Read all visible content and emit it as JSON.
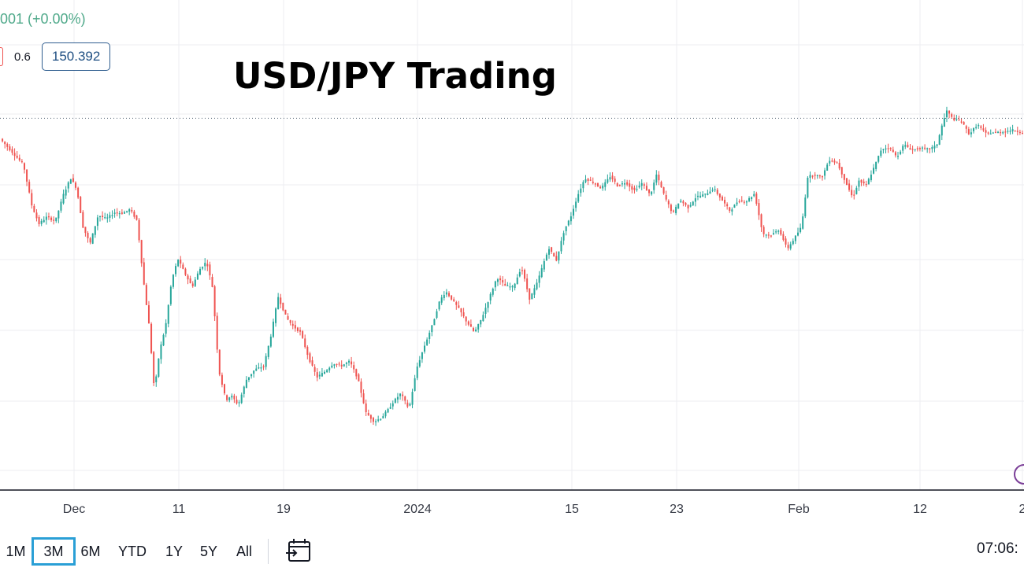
{
  "title": "USD/JPY Trading",
  "legend": {
    "change_text": "001 (+0.00%)",
    "indicator_value": "0.6",
    "price_label": "150.392"
  },
  "colors": {
    "up": "#26a69a",
    "down": "#ef5350",
    "grid": "#eceef2",
    "price_line": "#5a6b7a",
    "price_box_border": "#2f5d8f",
    "active_range": "#2a9fd6",
    "change_text": "#4fa98a"
  },
  "toolbar": {
    "ranges": [
      {
        "label": "1M",
        "active": false
      },
      {
        "label": "3M",
        "active": true
      },
      {
        "label": "6M",
        "active": false
      },
      {
        "label": "YTD",
        "active": false
      },
      {
        "label": "1Y",
        "active": false
      },
      {
        "label": "5Y",
        "active": false
      },
      {
        "label": "All",
        "active": false
      }
    ],
    "calendar_icon": "calendar-goto-icon",
    "clock_text": "07:06:"
  },
  "chart_data": {
    "type": "line",
    "title": "USD/JPY Trading",
    "x_tick_labels": [
      "Dec",
      "11",
      "19",
      "2024",
      "15",
      "23",
      "Feb",
      "12",
      "2"
    ],
    "grid": true,
    "current_price_line": true,
    "x_domain": [
      0,
      100
    ],
    "y_domain": [
      0,
      100
    ],
    "series": [
      {
        "x": [
          0,
          1,
          2.3,
          3.1,
          3.8,
          4.6,
          5.4,
          6.2,
          6.9,
          7.5,
          8.1,
          8.8,
          9.6,
          10.4,
          11.2,
          12,
          12.7,
          13.4,
          14.1,
          14.6,
          15.1,
          15.6,
          16.2,
          16.8,
          17.4,
          18.1,
          18.8,
          19.5,
          20.2,
          20.8,
          21.4,
          22.1,
          22.6,
          23.3,
          24.1,
          24.9,
          25.8,
          26.5,
          27.2,
          28,
          28.6,
          29.4,
          30.2,
          31,
          31.8,
          32.6,
          33.4,
          34.2,
          35,
          35.8,
          36.6,
          37.3,
          38,
          38.5,
          39.2,
          40,
          40.8,
          41.5,
          42.3,
          43,
          43.6,
          44.2,
          44.9,
          45.6,
          46.4,
          47.1,
          47.9,
          48.6,
          49.4,
          50.2,
          51,
          51.8,
          52.5,
          53.3,
          53.7,
          54.4,
          55.2,
          55.8,
          56.5,
          57.2,
          58,
          58.8,
          59.7,
          60.4,
          61.2,
          62,
          62.8,
          63.6,
          64.2,
          65,
          65.8,
          66.5,
          67.3,
          68.1,
          69,
          69.8,
          70.6,
          71.4,
          72.2,
          73,
          73.8,
          74.6,
          75.4,
          76.2,
          77,
          77.7,
          78.4,
          79,
          79.6,
          80.4,
          81.1,
          81.9,
          82.6,
          83.4,
          84,
          84.7,
          85.5,
          86.2,
          87,
          87.7,
          88.4,
          89.2,
          90,
          90.8,
          91.6,
          92.2,
          92.6,
          93.2,
          94,
          94.8,
          95.6,
          96.4,
          97.2,
          98,
          99,
          100
        ],
        "y": [
          91.8,
          88.6,
          84.3,
          72.8,
          67.4,
          69.5,
          68.1,
          75.8,
          80.6,
          77.5,
          66.7,
          61.7,
          69.9,
          68.9,
          70.7,
          70.5,
          71.6,
          68.4,
          49.5,
          37.8,
          19.5,
          30.9,
          38.3,
          51.4,
          57.4,
          53.1,
          49.4,
          54.3,
          56.7,
          49,
          25.4,
          16.9,
          18.3,
          15.6,
          22.8,
          25.7,
          26.7,
          35.5,
          46.6,
          40.6,
          38.3,
          36.3,
          28.9,
          23.5,
          25.2,
          27.5,
          26.8,
          28.1,
          23.1,
          13.3,
          10.8,
          11.9,
          14.4,
          16.6,
          18.9,
          14.4,
          26.5,
          32.4,
          38.6,
          45.4,
          48.1,
          45.8,
          43,
          39.6,
          36.3,
          40.3,
          46.6,
          52.1,
          49.7,
          49.3,
          55.1,
          45.9,
          50.3,
          57.4,
          60.5,
          56.9,
          65.8,
          69.3,
          75.6,
          80.5,
          79.3,
          77.6,
          81.1,
          78.3,
          79.4,
          76.9,
          79.1,
          75.6,
          81.5,
          75.3,
          70.3,
          74.3,
          72.1,
          75.2,
          75.9,
          77.6,
          74.3,
          71.1,
          74.1,
          73.9,
          76.1,
          64.6,
          64.2,
          65.8,
          60.2,
          63.3,
          66.7,
          80.9,
          81.6,
          80.8,
          85.8,
          84.8,
          80.1,
          74.9,
          79.8,
          78.4,
          83.7,
          88.8,
          89.4,
          86.5,
          90.1,
          88.6,
          89.1,
          88.8,
          89.8,
          96.3,
          99.8,
          97.4,
          96.9,
          93.1,
          95.9,
          93.3,
          93.6,
          93.7,
          94.3,
          93.6
        ]
      }
    ]
  }
}
